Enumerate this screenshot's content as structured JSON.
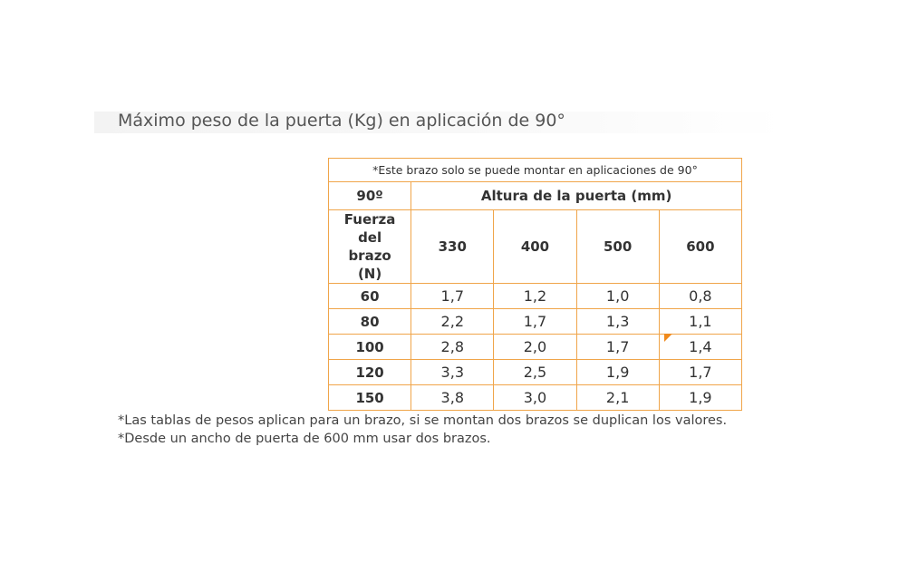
{
  "title": "Máximo peso de la puerta (Kg) en aplicación de 90°",
  "table": {
    "note": "*Este brazo solo se puede montar en aplicaciones de 90°",
    "corner": "90º",
    "header": "Altura de la puerta (mm)",
    "row_header": "Fuerza del brazo (N)",
    "columns": [
      "330",
      "400",
      "500",
      "600"
    ],
    "rows": [
      {
        "force": "60",
        "values": [
          "1,7",
          "1,2",
          "1,0",
          "0,8"
        ]
      },
      {
        "force": "80",
        "values": [
          "2,2",
          "1,7",
          "1,3",
          "1,1"
        ]
      },
      {
        "force": "100",
        "values": [
          "2,8",
          "2,0",
          "1,7",
          "1,4"
        ]
      },
      {
        "force": "120",
        "values": [
          "3,3",
          "2,5",
          "1,9",
          "1,7"
        ]
      },
      {
        "force": "150",
        "values": [
          "3,8",
          "3,0",
          "2,1",
          "1,9"
        ]
      }
    ]
  },
  "footnotes": [
    "*Las tablas de pesos aplican para un brazo, si se montan dos brazos se duplican los valores.",
    "*Desde un ancho de puerta de 600 mm usar dos brazos."
  ]
}
